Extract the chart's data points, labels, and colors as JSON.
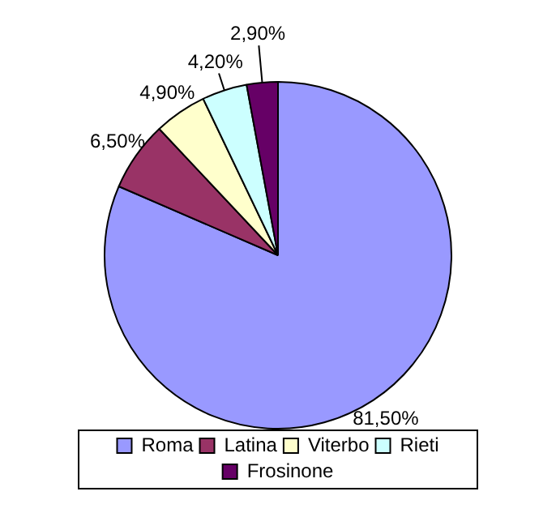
{
  "chart_data": {
    "type": "pie",
    "categories": [
      "Roma",
      "Latina",
      "Viterbo",
      "Rieti",
      "Frosinone"
    ],
    "values": [
      81.5,
      6.5,
      4.9,
      4.2,
      2.9
    ],
    "colors": [
      "#9999ff",
      "#993366",
      "#ffffcc",
      "#ccffff",
      "#660066"
    ],
    "value_labels": [
      "81,50%",
      "6,50%",
      "4,90%",
      "4,20%",
      "2,90%"
    ],
    "legend": "bottom"
  }
}
